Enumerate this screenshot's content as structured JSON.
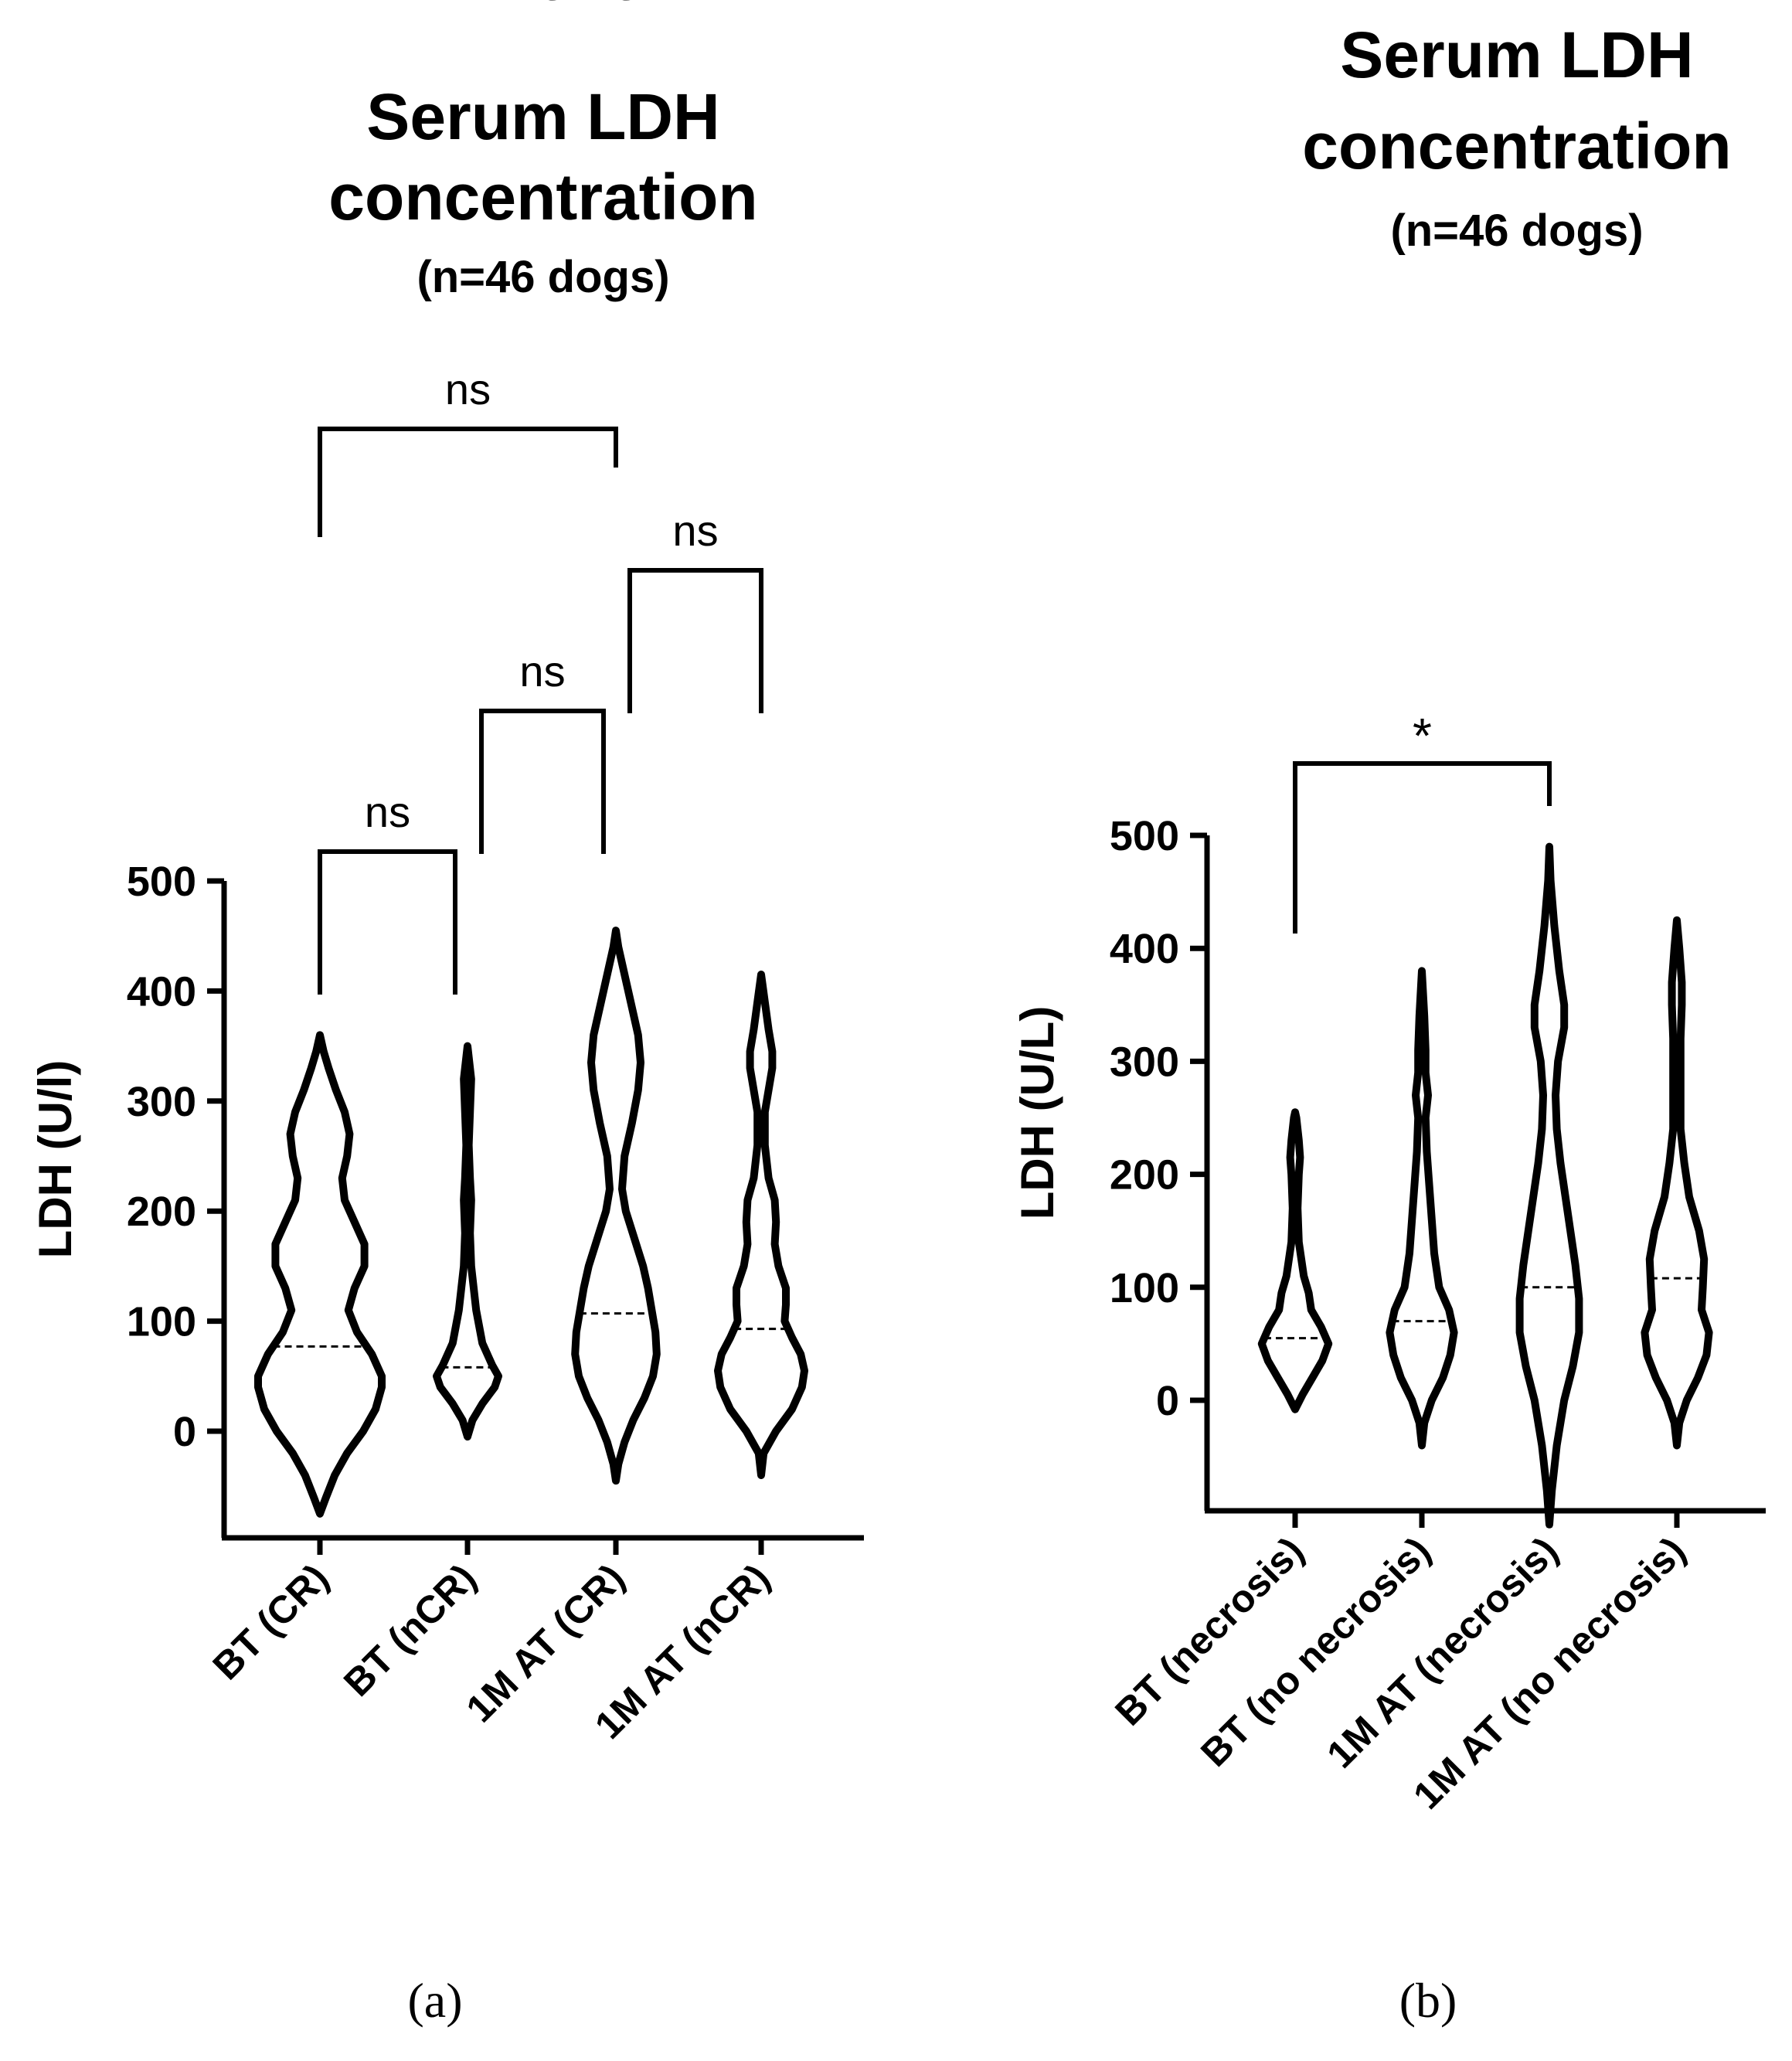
{
  "chart_data": [
    {
      "type": "violin",
      "panel_label": "(a)",
      "title_lines": [
        "Serum LDH",
        "concentration",
        "(n=46 dogs)"
      ],
      "ylabel": "LDH (U/l)",
      "ylim": [
        -100,
        500
      ],
      "yticks": [
        0,
        100,
        200,
        300,
        400,
        500
      ],
      "categories": [
        "BT (CR)",
        "BT (nCR)",
        "1M AT (CR)",
        "1M AT (nCR)"
      ],
      "medians": [
        77,
        58,
        107,
        93
      ],
      "violins": [
        {
          "category": "BT (CR)",
          "profile": [
            [
              -75,
              0
            ],
            [
              -60,
              5
            ],
            [
              -40,
              12
            ],
            [
              -20,
              22
            ],
            [
              0,
              35
            ],
            [
              20,
              45
            ],
            [
              40,
              50
            ],
            [
              50,
              50
            ],
            [
              70,
              42
            ],
            [
              90,
              30
            ],
            [
              110,
              23
            ],
            [
              130,
              28
            ],
            [
              150,
              36
            ],
            [
              170,
              36
            ],
            [
              190,
              28
            ],
            [
              210,
              20
            ],
            [
              230,
              18
            ],
            [
              250,
              22
            ],
            [
              270,
              24
            ],
            [
              290,
              20
            ],
            [
              310,
              13
            ],
            [
              330,
              7
            ],
            [
              345,
              3
            ],
            [
              360,
              0
            ]
          ]
        },
        {
          "category": "BT (nCR)",
          "profile": [
            [
              -5,
              0
            ],
            [
              10,
              4
            ],
            [
              25,
              12
            ],
            [
              40,
              22
            ],
            [
              50,
              25
            ],
            [
              60,
              20
            ],
            [
              80,
              12
            ],
            [
              110,
              7
            ],
            [
              130,
              5
            ],
            [
              150,
              3
            ],
            [
              180,
              2
            ],
            [
              210,
              3
            ],
            [
              230,
              2
            ],
            [
              260,
              1
            ],
            [
              290,
              2
            ],
            [
              320,
              3
            ],
            [
              340,
              1
            ],
            [
              350,
              0
            ]
          ]
        },
        {
          "category": "1M AT (CR)",
          "profile": [
            [
              -45,
              0
            ],
            [
              -30,
              2
            ],
            [
              -10,
              7
            ],
            [
              10,
              14
            ],
            [
              30,
              23
            ],
            [
              50,
              30
            ],
            [
              70,
              33
            ],
            [
              90,
              32
            ],
            [
              110,
              29
            ],
            [
              130,
              26
            ],
            [
              150,
              22
            ],
            [
              175,
              15
            ],
            [
              200,
              8
            ],
            [
              220,
              5
            ],
            [
              250,
              7
            ],
            [
              280,
              13
            ],
            [
              310,
              18
            ],
            [
              335,
              20
            ],
            [
              360,
              18
            ],
            [
              390,
              12
            ],
            [
              420,
              6
            ],
            [
              440,
              2
            ],
            [
              455,
              0
            ]
          ]
        },
        {
          "category": "1M AT (nCR)",
          "profile": [
            [
              -40,
              0
            ],
            [
              -20,
              2
            ],
            [
              0,
              12
            ],
            [
              20,
              25
            ],
            [
              40,
              33
            ],
            [
              55,
              35
            ],
            [
              70,
              32
            ],
            [
              85,
              25
            ],
            [
              100,
              19
            ],
            [
              115,
              20
            ],
            [
              130,
              20
            ],
            [
              150,
              14
            ],
            [
              170,
              11
            ],
            [
              190,
              12
            ],
            [
              210,
              11
            ],
            [
              230,
              6
            ],
            [
              260,
              3
            ],
            [
              290,
              3
            ],
            [
              310,
              6
            ],
            [
              330,
              9
            ],
            [
              345,
              9
            ],
            [
              365,
              6
            ],
            [
              390,
              3
            ],
            [
              415,
              0
            ]
          ]
        }
      ],
      "comparisons": [
        {
          "from": 0,
          "to": 1,
          "label": "ns"
        },
        {
          "from": 1,
          "to": 2,
          "label": "ns"
        },
        {
          "from": 2,
          "to": 3,
          "label": "ns"
        },
        {
          "from": 0,
          "to": 2,
          "label": "ns"
        },
        {
          "from": 1,
          "to": 3,
          "label": "ns"
        },
        {
          "from": 0,
          "to": 3,
          "label": "ns"
        }
      ]
    },
    {
      "type": "violin",
      "panel_label": "(b)",
      "title_lines": [
        "Serum LDH",
        "concentration",
        "(n=46 dogs)"
      ],
      "ylabel": "LDH (U/L)",
      "ylim": [
        -100,
        500
      ],
      "yticks": [
        0,
        100,
        200,
        300,
        400,
        500
      ],
      "categories": [
        "BT (necrosis)",
        "BT (no necrosis)",
        "1M AT (necrosis)",
        "1M AT (no necrosis)"
      ],
      "medians": [
        55,
        70,
        100,
        108
      ],
      "violins": [
        {
          "category": "BT (necrosis)",
          "profile": [
            [
              -8,
              0
            ],
            [
              5,
              6
            ],
            [
              20,
              14
            ],
            [
              35,
              22
            ],
            [
              50,
              27
            ],
            [
              65,
              21
            ],
            [
              80,
              13
            ],
            [
              95,
              11
            ],
            [
              110,
              7
            ],
            [
              140,
              3
            ],
            [
              170,
              2
            ],
            [
              200,
              3
            ],
            [
              215,
              4
            ],
            [
              230,
              3
            ],
            [
              250,
              1
            ],
            [
              255,
              0
            ]
          ]
        },
        {
          "category": "BT (no necrosis)",
          "profile": [
            [
              -40,
              0
            ],
            [
              -20,
              2
            ],
            [
              0,
              8
            ],
            [
              20,
              17
            ],
            [
              40,
              23
            ],
            [
              60,
              26
            ],
            [
              80,
              22
            ],
            [
              100,
              14
            ],
            [
              130,
              10
            ],
            [
              160,
              8
            ],
            [
              190,
              6
            ],
            [
              220,
              4
            ],
            [
              250,
              3
            ],
            [
              270,
              5
            ],
            [
              290,
              3
            ],
            [
              310,
              3
            ],
            [
              340,
              2
            ],
            [
              380,
              0
            ]
          ]
        },
        {
          "category": "1M AT (necrosis)",
          "profile": [
            [
              -110,
              0
            ],
            [
              -80,
              2
            ],
            [
              -40,
              6
            ],
            [
              0,
              12
            ],
            [
              30,
              19
            ],
            [
              60,
              24
            ],
            [
              90,
              24
            ],
            [
              120,
              21
            ],
            [
              150,
              17
            ],
            [
              180,
              13
            ],
            [
              210,
              9
            ],
            [
              240,
              6
            ],
            [
              270,
              5
            ],
            [
              300,
              7
            ],
            [
              330,
              12
            ],
            [
              350,
              12
            ],
            [
              380,
              8
            ],
            [
              420,
              4
            ],
            [
              460,
              1
            ],
            [
              490,
              0
            ]
          ]
        },
        {
          "category": "1M AT (no necrosis)",
          "profile": [
            [
              -40,
              0
            ],
            [
              -20,
              2
            ],
            [
              0,
              8
            ],
            [
              20,
              17
            ],
            [
              40,
              24
            ],
            [
              60,
              26
            ],
            [
              80,
              20
            ],
            [
              100,
              21
            ],
            [
              125,
              22
            ],
            [
              150,
              18
            ],
            [
              180,
              10
            ],
            [
              210,
              6
            ],
            [
              240,
              3
            ],
            [
              280,
              3
            ],
            [
              320,
              3
            ],
            [
              350,
              4
            ],
            [
              370,
              4
            ],
            [
              400,
              2
            ],
            [
              425,
              0
            ]
          ]
        }
      ],
      "comparisons": [
        {
          "from": 0,
          "to": 2,
          "label": "*"
        }
      ]
    }
  ]
}
